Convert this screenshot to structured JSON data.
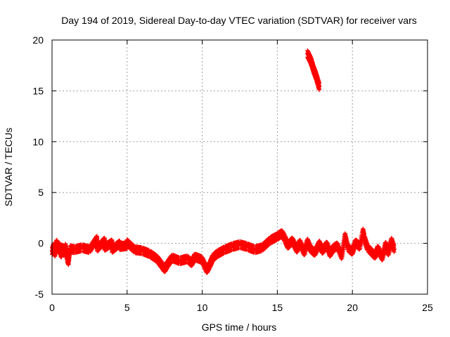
{
  "chart_data": {
    "type": "scatter",
    "title": "Day 194 of 2019, Sidereal Day-to-day VTEC variation (SDTVAR) for receiver vars",
    "xlabel": "GPS time / hours",
    "ylabel": "SDTVAR / TECUs",
    "xlim": [
      0,
      25
    ],
    "ylim": [
      -5,
      20
    ],
    "xticks": [
      "0",
      "5",
      "10",
      "15",
      "20",
      "25"
    ],
    "yticks": [
      "-5",
      "0",
      "5",
      "10",
      "15",
      "20"
    ],
    "grid": true,
    "marker": "+",
    "series": [
      {
        "name": "vars",
        "color": "#ff0000",
        "points": [
          [
            0.0,
            -0.8
          ],
          [
            0.1,
            -0.3
          ],
          [
            0.2,
            -1.0
          ],
          [
            0.3,
            0.1
          ],
          [
            0.4,
            -0.6
          ],
          [
            0.5,
            -0.2
          ],
          [
            0.6,
            -1.1
          ],
          [
            0.7,
            -0.4
          ],
          [
            0.8,
            -0.9
          ],
          [
            0.9,
            -0.3
          ],
          [
            1.0,
            -1.4
          ],
          [
            1.1,
            -1.8
          ],
          [
            1.2,
            -0.5
          ],
          [
            1.5,
            -0.6
          ],
          [
            2.0,
            -0.4
          ],
          [
            2.5,
            -0.6
          ],
          [
            3.0,
            0.5
          ],
          [
            3.0,
            -0.5
          ],
          [
            3.5,
            0.3
          ],
          [
            3.5,
            -0.4
          ],
          [
            4.0,
            0.1
          ],
          [
            4.0,
            -0.6
          ],
          [
            4.5,
            0.0
          ],
          [
            4.5,
            -0.3
          ],
          [
            5.0,
            -0.2
          ],
          [
            5.0,
            0.1
          ],
          [
            5.5,
            -0.6
          ],
          [
            6.0,
            -0.7
          ],
          [
            6.5,
            -1.0
          ],
          [
            7.0,
            -1.5
          ],
          [
            7.3,
            -2.1
          ],
          [
            7.5,
            -2.5
          ],
          [
            7.7,
            -2.0
          ],
          [
            8.0,
            -1.4
          ],
          [
            8.5,
            -1.7
          ],
          [
            9.0,
            -1.5
          ],
          [
            9.3,
            -1.9
          ],
          [
            9.5,
            -1.3
          ],
          [
            10.0,
            -1.6
          ],
          [
            10.3,
            -2.6
          ],
          [
            10.5,
            -2.1
          ],
          [
            10.7,
            -1.4
          ],
          [
            11.0,
            -1.0
          ],
          [
            11.5,
            -0.6
          ],
          [
            12.0,
            -0.3
          ],
          [
            12.5,
            -0.1
          ],
          [
            13.0,
            -0.3
          ],
          [
            13.5,
            -0.6
          ],
          [
            14.0,
            -0.4
          ],
          [
            14.5,
            0.3
          ],
          [
            15.0,
            0.7
          ],
          [
            15.3,
            1.0
          ],
          [
            15.5,
            0.5
          ],
          [
            15.7,
            -0.2
          ],
          [
            16.0,
            0.3
          ],
          [
            16.3,
            -0.6
          ],
          [
            16.5,
            0.1
          ],
          [
            16.8,
            -0.9
          ],
          [
            17.0,
            0.2
          ],
          [
            17.2,
            -0.5
          ],
          [
            17.5,
            -0.9
          ],
          [
            17.8,
            0.0
          ],
          [
            18.0,
            -0.7
          ],
          [
            18.3,
            -0.1
          ],
          [
            18.5,
            -1.0
          ],
          [
            18.7,
            -0.5
          ],
          [
            19.0,
            -0.2
          ],
          [
            19.3,
            -1.3
          ],
          [
            19.5,
            0.8
          ],
          [
            19.7,
            -0.4
          ],
          [
            20.0,
            -0.8
          ],
          [
            20.2,
            0.1
          ],
          [
            20.5,
            -0.3
          ],
          [
            20.7,
            1.2
          ],
          [
            20.8,
            0.5
          ],
          [
            21.0,
            -0.4
          ],
          [
            21.5,
            -1.2
          ],
          [
            21.7,
            -0.5
          ],
          [
            22.0,
            -1.4
          ],
          [
            22.2,
            -0.1
          ],
          [
            22.4,
            -0.9
          ],
          [
            22.6,
            0.3
          ],
          [
            22.8,
            -0.6
          ],
          [
            17.0,
            18.7
          ],
          [
            17.1,
            18.4
          ],
          [
            17.2,
            18.1
          ],
          [
            17.3,
            17.7
          ],
          [
            17.4,
            17.2
          ],
          [
            17.5,
            16.8
          ],
          [
            17.6,
            16.4
          ],
          [
            17.7,
            15.9
          ],
          [
            17.8,
            15.4
          ]
        ]
      }
    ]
  }
}
